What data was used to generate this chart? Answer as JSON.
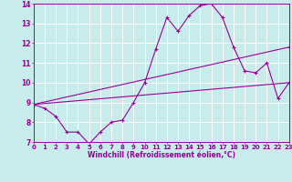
{
  "xlabel": "Windchill (Refroidissement éolien,°C)",
  "bg_color": "#c8ecec",
  "line_color": "#990099",
  "grid_color": "#ffffff",
  "ylim": [
    7,
    14
  ],
  "xlim": [
    0,
    23
  ],
  "yticks": [
    7,
    8,
    9,
    10,
    11,
    12,
    13,
    14
  ],
  "xticks": [
    0,
    1,
    2,
    3,
    4,
    5,
    6,
    7,
    8,
    9,
    10,
    11,
    12,
    13,
    14,
    15,
    16,
    17,
    18,
    19,
    20,
    21,
    22,
    23
  ],
  "line1_x": [
    0,
    1,
    2,
    3,
    4,
    5,
    6,
    7,
    8,
    9,
    10,
    11,
    12,
    13,
    14,
    15,
    16,
    17,
    18,
    19,
    20,
    21,
    22,
    23
  ],
  "line1_y": [
    8.9,
    8.7,
    8.3,
    7.5,
    7.5,
    6.9,
    7.5,
    8.0,
    8.1,
    9.0,
    10.0,
    11.7,
    13.3,
    12.6,
    13.4,
    13.9,
    14.0,
    13.3,
    11.8,
    10.6,
    10.5,
    11.0,
    9.2,
    10.0
  ],
  "line2_x": [
    0,
    23
  ],
  "line2_y": [
    8.9,
    11.8
  ],
  "line3_x": [
    0,
    23
  ],
  "line3_y": [
    8.9,
    10.0
  ]
}
